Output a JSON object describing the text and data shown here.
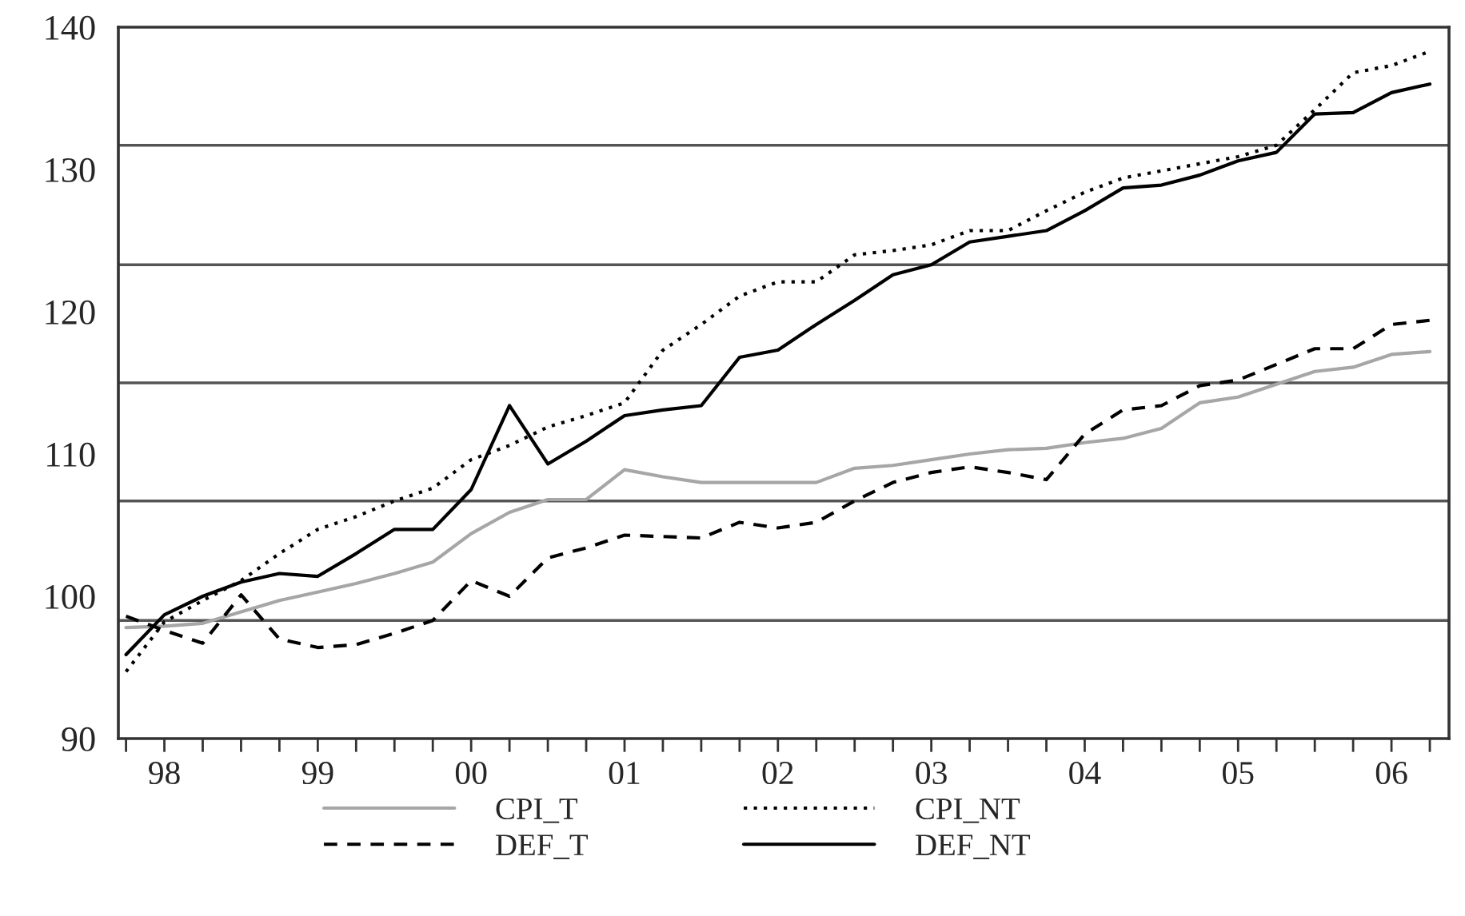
{
  "chart_data": {
    "type": "line",
    "categories": [
      null,
      "98",
      null,
      null,
      null,
      "99",
      null,
      null,
      null,
      "00",
      null,
      null,
      null,
      "01",
      null,
      null,
      null,
      "02",
      null,
      null,
      null,
      "03",
      null,
      null,
      null,
      "04",
      null,
      null,
      null,
      "05",
      null,
      null,
      null,
      "06",
      null
    ],
    "series": [
      {
        "name": "CPI_T",
        "color": "#a6a6a6",
        "line_style": "solid",
        "values": [
          97.8,
          97.9,
          98.1,
          98.9,
          99.7,
          100.3,
          100.9,
          101.6,
          102.4,
          104.4,
          105.9,
          106.8,
          106.8,
          108.9,
          108.4,
          108.0,
          108.0,
          108.0,
          108.0,
          109.0,
          109.2,
          109.6,
          110.0,
          110.3,
          110.4,
          110.8,
          111.1,
          111.8,
          113.6,
          114.0,
          114.9,
          115.8,
          116.1,
          117.0,
          117.2
        ]
      },
      {
        "name": "CPI_NT",
        "color": "#000000",
        "line_style": "dotted",
        "values": [
          94.7,
          98.2,
          99.7,
          101.1,
          103.0,
          104.7,
          105.6,
          106.7,
          107.6,
          109.6,
          110.6,
          111.9,
          112.7,
          113.6,
          117.3,
          119.1,
          121.1,
          122.1,
          122.1,
          124.0,
          124.3,
          124.7,
          125.7,
          125.7,
          127.1,
          128.4,
          129.4,
          129.9,
          130.4,
          130.9,
          131.7,
          134.2,
          136.8,
          137.3,
          138.3
        ]
      },
      {
        "name": "DEF_T",
        "color": "#000000",
        "line_style": "dashed",
        "values": [
          98.6,
          97.6,
          96.7,
          100.1,
          97.0,
          96.4,
          96.6,
          97.4,
          98.3,
          101.1,
          100.0,
          102.7,
          103.4,
          104.3,
          104.2,
          104.1,
          105.2,
          104.8,
          105.2,
          106.7,
          108.0,
          108.7,
          109.1,
          108.7,
          108.2,
          111.4,
          113.1,
          113.4,
          114.8,
          115.2,
          116.3,
          117.4,
          117.4,
          119.1,
          119.4
        ]
      },
      {
        "name": "DEF_NT",
        "color": "#000000",
        "line_style": "solid",
        "values": [
          95.9,
          98.7,
          100.0,
          101.0,
          101.6,
          101.4,
          103.0,
          104.7,
          104.7,
          107.5,
          113.4,
          109.3,
          110.9,
          112.7,
          113.1,
          113.4,
          116.8,
          117.3,
          119.1,
          120.8,
          122.6,
          123.3,
          124.9,
          125.3,
          125.7,
          127.1,
          128.7,
          128.9,
          129.6,
          130.6,
          131.2,
          133.9,
          134.0,
          135.4,
          136.0
        ]
      }
    ],
    "ylim": [
      90,
      140
    ],
    "yticks": [
      90,
      {
        "value": 98.3,
        "label": null
      },
      100,
      {
        "value": 106.7,
        "label": null
      },
      110,
      {
        "value": 115,
        "label": null
      },
      120,
      {
        "value": 123.3,
        "label": null
      },
      130,
      {
        "value": 131.7,
        "label": null
      },
      140
    ],
    "grid": "y",
    "legend": "bottom",
    "marker": "none"
  }
}
